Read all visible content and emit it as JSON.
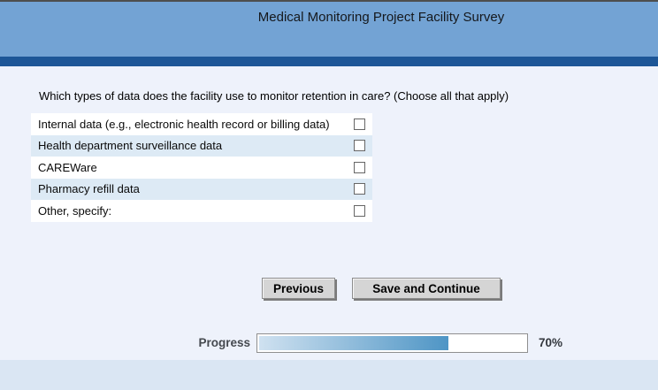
{
  "header": {
    "title": "Medical Monitoring Project Facility Survey"
  },
  "question": "Which types of data does the facility use to monitor retention in care? (Choose all that apply)",
  "options": [
    {
      "label": "Internal data (e.g., electronic health record or billing data)",
      "checked": false
    },
    {
      "label": "Health department surveillance data",
      "checked": false
    },
    {
      "label": "CAREWare",
      "checked": false
    },
    {
      "label": "Pharmacy refill data",
      "checked": false
    },
    {
      "label": "Other, specify:",
      "checked": false
    }
  ],
  "buttons": {
    "previous": "Previous",
    "save_continue": "Save and Continue"
  },
  "progress": {
    "label": "Progress",
    "percent": 70,
    "percent_label": "70%"
  },
  "colors": {
    "header_bg": "#73a3d4",
    "divider_stripe": "#1d5697",
    "page_bg": "#eef2fb",
    "row_alt_bg": "#ddeaf5",
    "footer_bg": "#dae6f3",
    "progress_fill_start": "#cfe1f0",
    "progress_fill_end": "#4e95c5",
    "button_face": "#d5d5d5"
  }
}
